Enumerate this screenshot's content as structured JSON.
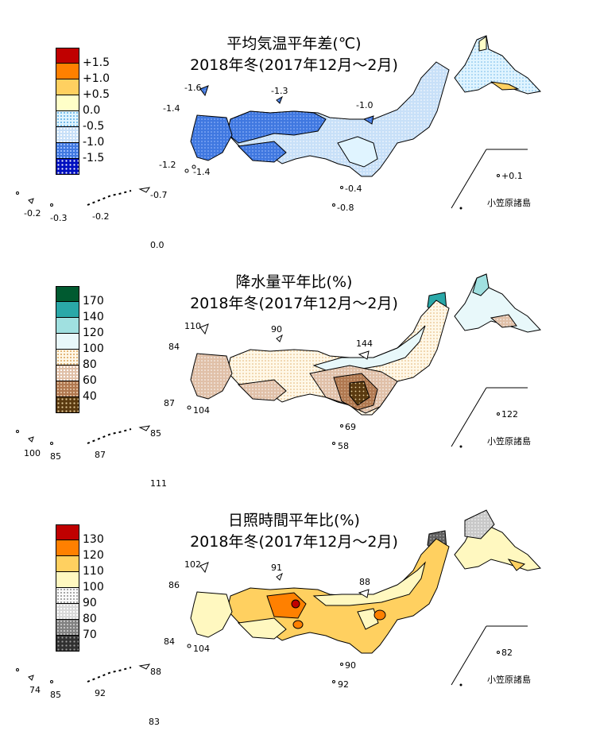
{
  "panels": [
    {
      "title": "平均気温平年差(℃)",
      "subtitle": "2018年冬(2017年12月～2月)",
      "legend": [
        "+1.5",
        "+1.0",
        "+0.5",
        "0.0",
        "-0.5",
        "-1.0",
        "-1.5"
      ],
      "legend_colors": [
        "#c00000",
        "#ff8000",
        "#ffd060",
        "#ffffc8",
        "#e0f4ff",
        "#a0c8f0",
        "#4070e0",
        "#0010c0"
      ],
      "values": [
        "-1.6",
        "-1.3",
        "-1.4",
        "-1.0",
        "-1.2",
        "-1.4",
        "-0.7",
        "-0.2",
        "-0.3",
        "-0.2",
        "-0.4",
        "-0.8",
        "0.0",
        "+0.1"
      ],
      "islands_label": "小笠原諸島"
    },
    {
      "title": "降水量平年比(%)",
      "subtitle": "2018年冬(2017年12月～2月)",
      "legend": [
        "170",
        "140",
        "120",
        "100",
        "80",
        "60",
        "40"
      ],
      "legend_colors": [
        "#005a30",
        "#2aa8a8",
        "#a0e0e0",
        "#e8f8fa",
        "#fff8e8",
        "#e0c0a8",
        "#b07850",
        "#5a3a10"
      ],
      "values": [
        "110",
        "90",
        "84",
        "144",
        "87",
        "104",
        "85",
        "100",
        "85",
        "87",
        "69",
        "58",
        "111",
        "122"
      ],
      "islands_label": "小笠原諸島"
    },
    {
      "title": "日照時間平年比(%)",
      "subtitle": "2018年冬(2017年12月～2月)",
      "legend": [
        "130",
        "120",
        "110",
        "100",
        "90",
        "80",
        "70"
      ],
      "legend_colors": [
        "#c00000",
        "#ff8000",
        "#ffd060",
        "#fff8c0",
        "#f4f4f4",
        "#c8c8c8",
        "#808080",
        "#303030"
      ],
      "values": [
        "102",
        "91",
        "86",
        "88",
        "84",
        "104",
        "88",
        "74",
        "85",
        "92",
        "90",
        "92",
        "83",
        "82"
      ],
      "islands_label": "小笠原諸島"
    }
  ]
}
